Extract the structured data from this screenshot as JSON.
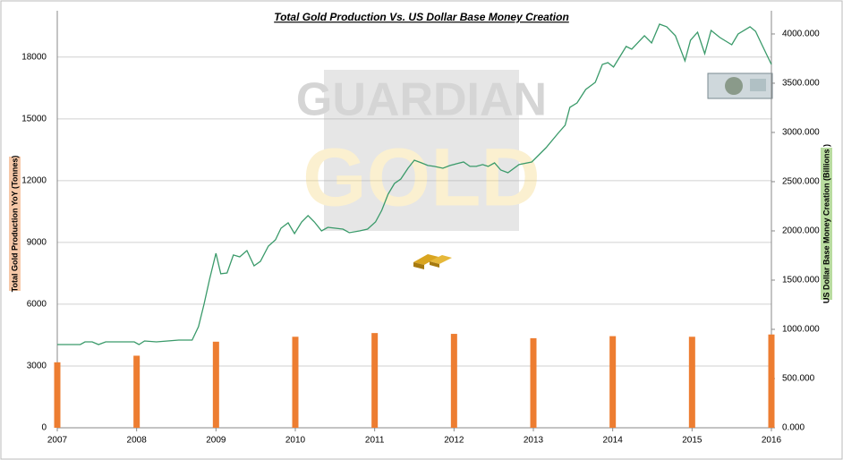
{
  "chart_data": {
    "type": "combo",
    "title": "Total Gold Production Vs. US Dollar Base Money Creation",
    "watermark": [
      "GUARDIAN",
      "GOLD"
    ],
    "ylabel": "Total Gold Production YoY (Tonnes)",
    "y2label": "US Dollar Base Money Creation (Billions )",
    "xlim": [
      2007,
      2016
    ],
    "xticks": [
      2007,
      2008,
      2009,
      2010,
      2011,
      2012,
      2013,
      2014,
      2015,
      2016
    ],
    "ylim": [
      0,
      20250
    ],
    "yticks": [
      0,
      3000,
      6000,
      9000,
      12000,
      15000,
      18000
    ],
    "y2lim": [
      0,
      4236
    ],
    "y2ticks": [
      {
        "value": 0,
        "label": "0.000"
      },
      {
        "value": 500,
        "label": "500.000"
      },
      {
        "value": 1000,
        "label": "1000.000"
      },
      {
        "value": 1500,
        "label": "1500.000"
      },
      {
        "value": 2000,
        "label": "2000.000"
      },
      {
        "value": 2500,
        "label": "2500.000"
      },
      {
        "value": 3000,
        "label": "3000.000"
      },
      {
        "value": 3500,
        "label": "3500.000"
      },
      {
        "value": 4000,
        "label": "4000.000"
      }
    ],
    "grid": true,
    "bars": {
      "color": "#ed7d31",
      "x": [
        2007,
        2008,
        2009,
        2010,
        2011,
        2012,
        2013,
        2014,
        2015,
        2016
      ],
      "values": [
        3180,
        3500,
        4180,
        4420,
        4600,
        4560,
        4350,
        4450,
        4420,
        4530
      ]
    },
    "line": {
      "color": "#3a9a6a",
      "axis": "y2",
      "x": [
        2007.0,
        2007.29,
        2007.35,
        2007.44,
        2007.52,
        2007.61,
        2007.97,
        2008.03,
        2008.1,
        2008.25,
        2008.53,
        2008.7,
        2008.78,
        2008.85,
        2008.92,
        2009.0,
        2009.06,
        2009.14,
        2009.22,
        2009.3,
        2009.39,
        2009.48,
        2009.56,
        2009.66,
        2009.75,
        2009.82,
        2009.91,
        2009.99,
        2010.08,
        2010.16,
        2010.24,
        2010.33,
        2010.41,
        2010.6,
        2010.68,
        2010.81,
        2010.91,
        2011.01,
        2011.09,
        2011.17,
        2011.25,
        2011.33,
        2011.42,
        2011.5,
        2011.59,
        2011.67,
        2011.75,
        2011.86,
        2011.95,
        2012.03,
        2012.12,
        2012.2,
        2012.28,
        2012.36,
        2012.43,
        2012.51,
        2012.59,
        2012.68,
        2012.82,
        2012.98,
        2013.16,
        2013.32,
        2013.4,
        2013.46,
        2013.55,
        2013.66,
        2013.78,
        2013.87,
        2013.94,
        2014.01,
        2014.17,
        2014.24,
        2014.4,
        2014.49,
        2014.59,
        2014.68,
        2014.79,
        2014.91,
        2014.98,
        2015.07,
        2015.16,
        2015.24,
        2015.35,
        2015.5,
        2015.58,
        2015.73,
        2015.8,
        2015.88,
        2016.0
      ],
      "values": [
        845,
        845,
        873,
        873,
        845,
        873,
        873,
        845,
        882,
        873,
        891,
        891,
        1027,
        1255,
        1509,
        1773,
        1564,
        1573,
        1755,
        1736,
        1800,
        1645,
        1691,
        1845,
        1909,
        2027,
        2082,
        1973,
        2091,
        2155,
        2091,
        2000,
        2036,
        2018,
        1982,
        2000,
        2018,
        2091,
        2209,
        2373,
        2482,
        2527,
        2636,
        2718,
        2691,
        2664,
        2655,
        2636,
        2664,
        2682,
        2700,
        2655,
        2655,
        2673,
        2655,
        2691,
        2618,
        2591,
        2673,
        2700,
        2845,
        3000,
        3073,
        3255,
        3300,
        3436,
        3509,
        3691,
        3709,
        3664,
        3873,
        3845,
        3982,
        3909,
        4100,
        4073,
        3982,
        3727,
        3936,
        4018,
        3800,
        4036,
        3964,
        3891,
        4000,
        4073,
        4027,
        3891,
        3691
      ]
    }
  }
}
